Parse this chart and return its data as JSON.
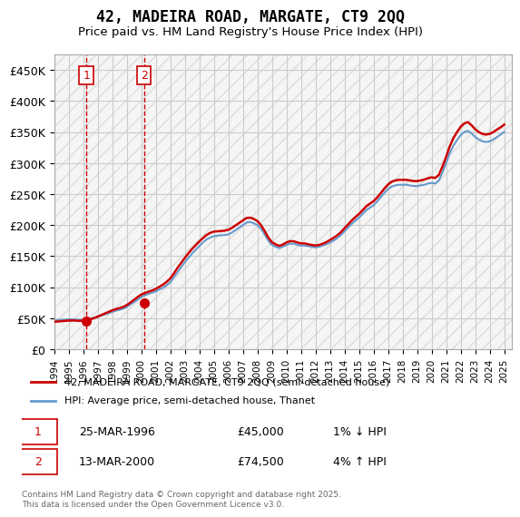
{
  "title": "42, MADEIRA ROAD, MARGATE, CT9 2QQ",
  "subtitle": "Price paid vs. HM Land Registry's House Price Index (HPI)",
  "ylabel_ticks": [
    "£0",
    "£50K",
    "£100K",
    "£150K",
    "£200K",
    "£250K",
    "£300K",
    "£350K",
    "£400K",
    "£450K"
  ],
  "ytick_vals": [
    0,
    50000,
    100000,
    150000,
    200000,
    250000,
    300000,
    350000,
    400000,
    450000
  ],
  "ylim": [
    0,
    475000
  ],
  "xlim_start": 1994,
  "xlim_end": 2025.5,
  "background_color": "#ffffff",
  "plot_bg_color": "#ffffff",
  "grid_color": "#cccccc",
  "hatch_color": "#dddddd",
  "legend_label_property": "42, MADEIRA ROAD, MARGATE, CT9 2QQ (semi-detached house)",
  "legend_label_hpi": "HPI: Average price, semi-detached house, Thanet",
  "property_color": "#cc0000",
  "hpi_color": "#6699cc",
  "sale1_x": 1996.22,
  "sale1_y": 45000,
  "sale1_label": "1",
  "sale2_x": 2000.2,
  "sale2_y": 74500,
  "sale2_label": "2",
  "annotation1": "25-MAR-1996",
  "annotation1_price": "£45,000",
  "annotation1_change": "1% ↓ HPI",
  "annotation2": "13-MAR-2000",
  "annotation2_price": "£74,500",
  "annotation2_change": "4% ↑ HPI",
  "footer": "Contains HM Land Registry data © Crown copyright and database right 2025.\nThis data is licensed under the Open Government Licence v3.0.",
  "hpi_data_x": [
    1994.0,
    1994.25,
    1994.5,
    1994.75,
    1995.0,
    1995.25,
    1995.5,
    1995.75,
    1996.0,
    1996.25,
    1996.5,
    1996.75,
    1997.0,
    1997.25,
    1997.5,
    1997.75,
    1998.0,
    1998.25,
    1998.5,
    1998.75,
    1999.0,
    1999.25,
    1999.5,
    1999.75,
    2000.0,
    2000.25,
    2000.5,
    2000.75,
    2001.0,
    2001.25,
    2001.5,
    2001.75,
    2002.0,
    2002.25,
    2002.5,
    2002.75,
    2003.0,
    2003.25,
    2003.5,
    2003.75,
    2004.0,
    2004.25,
    2004.5,
    2004.75,
    2005.0,
    2005.25,
    2005.5,
    2005.75,
    2006.0,
    2006.25,
    2006.5,
    2006.75,
    2007.0,
    2007.25,
    2007.5,
    2007.75,
    2008.0,
    2008.25,
    2008.5,
    2008.75,
    2009.0,
    2009.25,
    2009.5,
    2009.75,
    2010.0,
    2010.25,
    2010.5,
    2010.75,
    2011.0,
    2011.25,
    2011.5,
    2011.75,
    2012.0,
    2012.25,
    2012.5,
    2012.75,
    2013.0,
    2013.25,
    2013.5,
    2013.75,
    2014.0,
    2014.25,
    2014.5,
    2014.75,
    2015.0,
    2015.25,
    2015.5,
    2015.75,
    2016.0,
    2016.25,
    2016.5,
    2016.75,
    2017.0,
    2017.25,
    2017.5,
    2017.75,
    2018.0,
    2018.25,
    2018.5,
    2018.75,
    2019.0,
    2019.25,
    2019.5,
    2019.75,
    2020.0,
    2020.25,
    2020.5,
    2020.75,
    2021.0,
    2021.25,
    2021.5,
    2021.75,
    2022.0,
    2022.25,
    2022.5,
    2022.75,
    2023.0,
    2023.25,
    2023.5,
    2023.75,
    2024.0,
    2024.25,
    2024.5,
    2024.75,
    2025.0
  ],
  "hpi_data_y": [
    46000,
    46500,
    47000,
    47500,
    48000,
    48000,
    47500,
    47000,
    47500,
    48000,
    49000,
    50500,
    52000,
    54000,
    56000,
    58000,
    60000,
    62000,
    63500,
    65000,
    68000,
    72000,
    76000,
    80000,
    84000,
    87000,
    89000,
    91000,
    93000,
    96000,
    99000,
    103000,
    108000,
    116000,
    124000,
    132000,
    140000,
    147000,
    154000,
    160000,
    166000,
    172000,
    177000,
    180000,
    182000,
    183000,
    183500,
    184000,
    185000,
    188000,
    192000,
    196000,
    200000,
    204000,
    205000,
    203000,
    200000,
    194000,
    185000,
    175000,
    168000,
    165000,
    163000,
    165000,
    168000,
    170000,
    170000,
    168000,
    167000,
    167000,
    166000,
    165000,
    164000,
    165000,
    167000,
    169000,
    172000,
    175000,
    179000,
    184000,
    190000,
    196000,
    202000,
    207000,
    212000,
    218000,
    224000,
    228000,
    232000,
    238000,
    245000,
    252000,
    258000,
    262000,
    264000,
    265000,
    265000,
    265000,
    264000,
    263000,
    263000,
    264000,
    265000,
    267000,
    268000,
    267000,
    272000,
    285000,
    300000,
    316000,
    328000,
    337000,
    345000,
    350000,
    352000,
    348000,
    342000,
    338000,
    335000,
    334000,
    335000,
    338000,
    342000,
    346000,
    350000
  ],
  "prop_data_x": [
    1994.0,
    1994.25,
    1994.5,
    1994.75,
    1995.0,
    1995.25,
    1995.5,
    1995.75,
    1996.0,
    1996.25,
    1996.5,
    1996.75,
    1997.0,
    1997.25,
    1997.5,
    1997.75,
    1998.0,
    1998.25,
    1998.5,
    1998.75,
    1999.0,
    1999.25,
    1999.5,
    1999.75,
    2000.0,
    2000.25,
    2000.5,
    2000.75,
    2001.0,
    2001.25,
    2001.5,
    2001.75,
    2002.0,
    2002.25,
    2002.5,
    2002.75,
    2003.0,
    2003.25,
    2003.5,
    2003.75,
    2004.0,
    2004.25,
    2004.5,
    2004.75,
    2005.0,
    2005.25,
    2005.5,
    2005.75,
    2006.0,
    2006.25,
    2006.5,
    2006.75,
    2007.0,
    2007.25,
    2007.5,
    2007.75,
    2008.0,
    2008.25,
    2008.5,
    2008.75,
    2009.0,
    2009.25,
    2009.5,
    2009.75,
    2010.0,
    2010.25,
    2010.5,
    2010.75,
    2011.0,
    2011.25,
    2011.5,
    2011.75,
    2012.0,
    2012.25,
    2012.5,
    2012.75,
    2013.0,
    2013.25,
    2013.5,
    2013.75,
    2014.0,
    2014.25,
    2014.5,
    2014.75,
    2015.0,
    2015.25,
    2015.5,
    2015.75,
    2016.0,
    2016.25,
    2016.5,
    2016.75,
    2017.0,
    2017.25,
    2017.5,
    2017.75,
    2018.0,
    2018.25,
    2018.5,
    2018.75,
    2019.0,
    2019.25,
    2019.5,
    2019.75,
    2020.0,
    2020.25,
    2020.5,
    2020.75,
    2021.0,
    2021.25,
    2021.5,
    2021.75,
    2022.0,
    2022.25,
    2022.5,
    2022.75,
    2023.0,
    2023.25,
    2023.5,
    2023.75,
    2024.0,
    2024.25,
    2024.5,
    2024.75,
    2025.0
  ],
  "prop_data_y": [
    44000,
    44500,
    45000,
    45500,
    46000,
    46200,
    46000,
    45500,
    45800,
    46500,
    48000,
    50000,
    52500,
    55000,
    57500,
    60000,
    62500,
    64500,
    66000,
    68000,
    71000,
    75000,
    79500,
    84000,
    88000,
    90500,
    92500,
    94500,
    97000,
    100500,
    104000,
    108500,
    114000,
    122000,
    131000,
    139000,
    147000,
    154500,
    161500,
    167500,
    173500,
    179000,
    184000,
    187500,
    189500,
    190000,
    190500,
    191000,
    192500,
    195500,
    199500,
    203500,
    207500,
    211500,
    212000,
    210000,
    206500,
    200000,
    190500,
    180000,
    172500,
    169000,
    166500,
    168500,
    172000,
    174000,
    174000,
    172000,
    170500,
    170500,
    169000,
    168000,
    167000,
    168000,
    170000,
    172500,
    176000,
    179500,
    183500,
    188500,
    195000,
    201000,
    207500,
    213000,
    218000,
    224000,
    230500,
    234500,
    238500,
    244500,
    251500,
    259000,
    265500,
    270000,
    272000,
    273000,
    273000,
    273000,
    272000,
    271000,
    271000,
    272000,
    273500,
    275500,
    277000,
    276000,
    281000,
    294500,
    310000,
    327000,
    340000,
    350000,
    358500,
    364000,
    366000,
    361000,
    354500,
    350000,
    347000,
    346000,
    347000,
    350000,
    354000,
    357500,
    362000
  ]
}
